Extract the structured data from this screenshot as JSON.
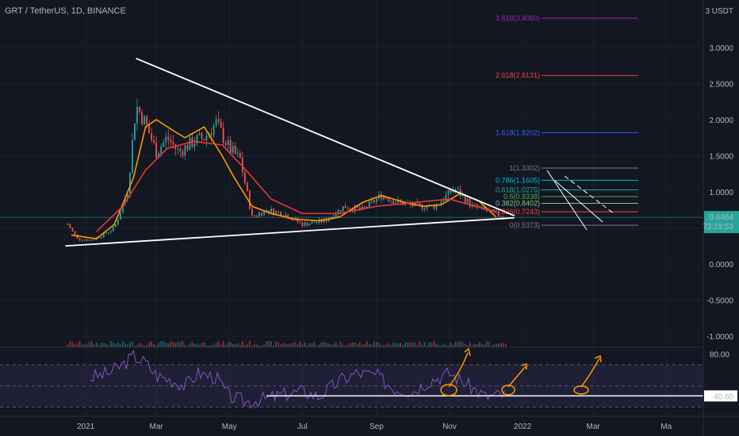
{
  "header": {
    "title": "GRT / TetherUS, 1D, BINANCE",
    "currency": "3 USDT"
  },
  "price_badge": {
    "value": "0.6464",
    "countdown": "73:19:53",
    "color": "#26a69a"
  },
  "rsi_badge": {
    "value": "40.60"
  },
  "chart_data": [
    {
      "type": "line",
      "title": "GRT / TetherUS, 1D, BINANCE",
      "xlabel": "",
      "ylabel": "",
      "ylim": [
        -1.1,
        3.4
      ],
      "yticks": [
        "3.0000",
        "2.5000",
        "2.0000",
        "1.5000",
        "1.0000",
        "0.5000",
        "0.0000",
        "-0.5000",
        "-1.0000"
      ],
      "xticks": [
        "2021",
        "Mar",
        "May",
        "Jul",
        "Sep",
        "Nov",
        "2022",
        "Mar",
        "Ma"
      ],
      "price_approx": {
        "x": [
          "2020-12-17",
          "2020-12-25",
          "2021-01-05",
          "2021-01-15",
          "2021-01-25",
          "2021-02-05",
          "2021-02-12",
          "2021-02-20",
          "2021-03-01",
          "2021-03-10",
          "2021-03-20",
          "2021-04-01",
          "2021-04-10",
          "2021-04-20",
          "2021-05-01",
          "2021-05-10",
          "2021-05-20",
          "2021-06-01",
          "2021-06-15",
          "2021-07-01",
          "2021-07-20",
          "2021-08-05",
          "2021-08-20",
          "2021-09-05",
          "2021-09-20",
          "2021-10-05",
          "2021-10-20",
          "2021-11-05",
          "2021-11-20",
          "2021-12-05",
          "2021-12-18"
        ],
        "y": [
          0.55,
          0.35,
          0.33,
          0.4,
          0.5,
          1.0,
          2.2,
          1.95,
          1.55,
          1.75,
          1.55,
          1.7,
          1.75,
          1.95,
          1.6,
          1.45,
          0.65,
          0.75,
          0.7,
          0.55,
          0.6,
          0.8,
          0.75,
          0.95,
          0.85,
          0.8,
          0.8,
          1.05,
          0.8,
          0.72,
          0.65
        ]
      },
      "series": [
        {
          "name": "",
          "color": "#ff9800",
          "x": [
            "2020-12-20",
            "2021-01-10",
            "2021-01-25",
            "2021-02-10",
            "2021-02-20",
            "2021-03-01",
            "2021-03-15",
            "2021-03-25",
            "2021-04-10",
            "2021-04-25",
            "2021-05-05",
            "2021-05-20",
            "2021-06-05",
            "2021-06-25",
            "2021-07-15",
            "2021-08-01",
            "2021-08-20",
            "2021-09-05",
            "2021-09-25",
            "2021-10-10",
            "2021-10-25",
            "2021-11-10",
            "2021-11-25",
            "2021-12-10"
          ],
          "values": [
            0.4,
            0.35,
            0.55,
            1.2,
            1.9,
            2.0,
            1.85,
            1.75,
            1.9,
            1.5,
            1.2,
            0.8,
            0.7,
            0.62,
            0.6,
            0.65,
            0.85,
            0.95,
            0.85,
            0.8,
            0.82,
            0.98,
            0.88,
            0.65
          ]
        },
        {
          "name": "",
          "color": "#e53935",
          "x": [
            "2021-01-10",
            "2021-02-01",
            "2021-02-20",
            "2021-03-10",
            "2021-04-01",
            "2021-04-25",
            "2021-05-15",
            "2021-06-05",
            "2021-07-01",
            "2021-08-01",
            "2021-09-01",
            "2021-10-01",
            "2021-11-01",
            "2021-12-10"
          ],
          "values": [
            0.45,
            0.8,
            1.3,
            1.6,
            1.7,
            1.65,
            1.3,
            0.9,
            0.7,
            0.7,
            0.8,
            0.85,
            0.9,
            0.72
          ]
        }
      ],
      "trendlines": [
        {
          "from": [
            "2021-02-12",
            2.85
          ],
          "to": [
            "2021-12-25",
            0.67
          ],
          "color": "#ffffff"
        },
        {
          "from": [
            "2020-12-15",
            0.25
          ],
          "to": [
            "2021-12-25",
            0.64
          ],
          "color": "#ffffff"
        }
      ],
      "horizontal_lines": [
        {
          "y": 0.6464,
          "color": "#26a69a",
          "name": "current price"
        }
      ],
      "fibonacci": [
        {
          "label": "3.618(3.4060)",
          "value": 3.406,
          "color": "#9c27b0"
        },
        {
          "label": "2.618(2.6131)",
          "value": 2.6131,
          "color": "#f44336"
        },
        {
          "label": "1.618(1.8202)",
          "value": 1.8202,
          "color": "#2962ff"
        },
        {
          "label": "1(1.3302)",
          "value": 1.3302,
          "color": "#787b86"
        },
        {
          "label": "0.786(1.1605)",
          "value": 1.1605,
          "color": "#00bcd4"
        },
        {
          "label": "0.618(1.0275)",
          "value": 1.0275,
          "color": "#26a69a"
        },
        {
          "label": "0.5(0.9338)",
          "value": 0.9338,
          "color": "#4caf50"
        },
        {
          "label": "0.382(0.8402)",
          "value": 0.8402,
          "color": "#81c784"
        },
        {
          "label": "0.236(0.7243)",
          "value": 0.7243,
          "color": "#f44336"
        },
        {
          "label": "0(0.5373)",
          "value": 0.5373,
          "color": "#787b86"
        }
      ]
    },
    {
      "type": "line",
      "title": "",
      "ylim": [
        20,
        85
      ],
      "yticks": [
        "80.00"
      ],
      "band": {
        "upper": 70,
        "lower": 30,
        "color": "#7e57c2"
      },
      "series": [
        {
          "name": "",
          "color": "#7e57c2",
          "x": [
            "2021-01-05",
            "2021-01-20",
            "2021-02-01",
            "2021-02-10",
            "2021-02-20",
            "2021-03-01",
            "2021-03-15",
            "2021-03-25",
            "2021-04-05",
            "2021-04-20",
            "2021-05-01",
            "2021-05-15",
            "2021-06-01",
            "2021-06-15",
            "2021-07-01",
            "2021-07-15",
            "2021-08-01",
            "2021-08-15",
            "2021-09-01",
            "2021-09-15",
            "2021-10-01",
            "2021-10-15",
            "2021-11-01",
            "2021-11-15",
            "2021-12-01",
            "2021-12-18"
          ],
          "values": [
            58,
            62,
            70,
            78,
            72,
            60,
            55,
            50,
            62,
            58,
            40,
            35,
            38,
            42,
            45,
            40,
            55,
            62,
            60,
            48,
            45,
            55,
            62,
            52,
            40,
            42
          ]
        }
      ],
      "horizontal_lines": [
        {
          "y": 40.6,
          "color": "#ffffff"
        }
      ]
    }
  ]
}
